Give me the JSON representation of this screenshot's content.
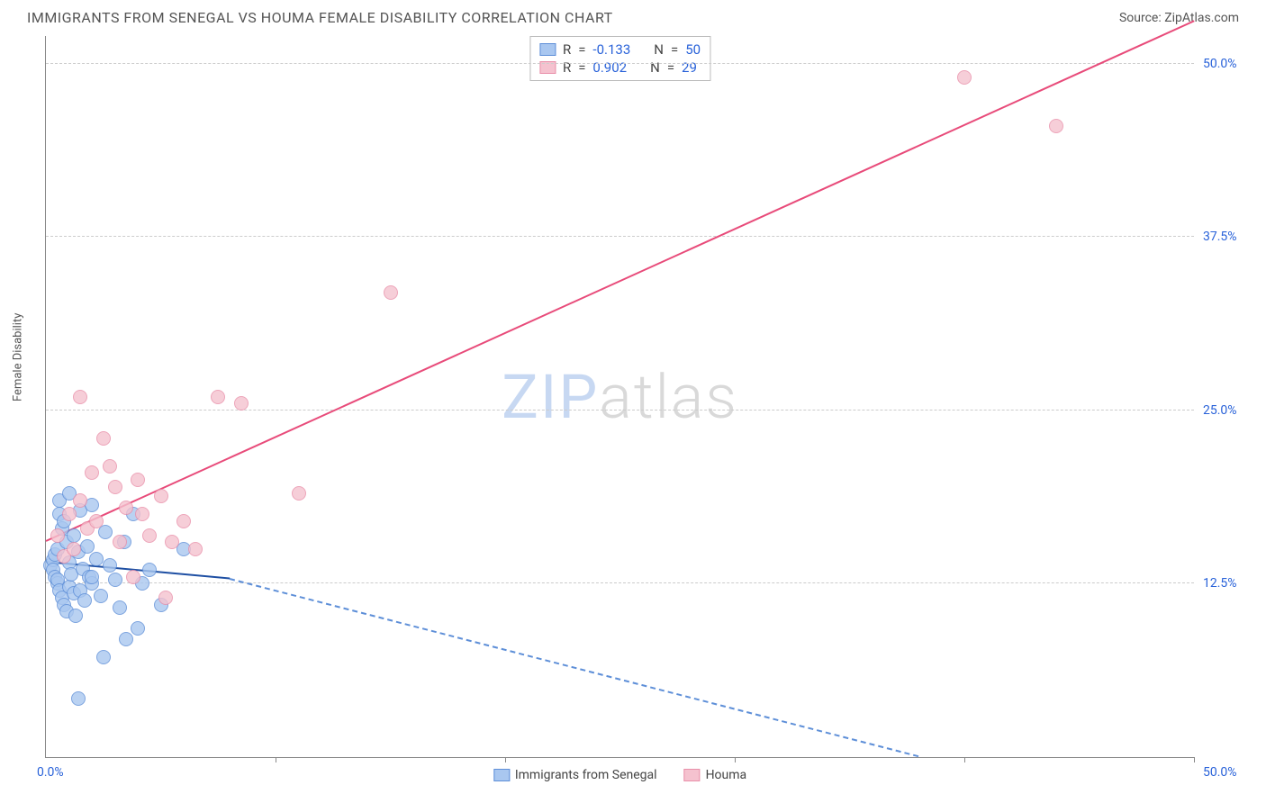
{
  "header": {
    "title": "IMMIGRANTS FROM SENEGAL VS HOUMA FEMALE DISABILITY CORRELATION CHART",
    "source": "Source: ZipAtlas.com"
  },
  "ylabel": "Female Disability",
  "watermark": {
    "zip": "ZIP",
    "atlas": "atlas"
  },
  "axes": {
    "xlim": [
      0,
      50
    ],
    "ylim": [
      0,
      52
    ],
    "x_origin_label": "0.0%",
    "x_max_label": "50.0%",
    "y_ticks": [
      {
        "y": 12.5,
        "label": "12.5%"
      },
      {
        "y": 25.0,
        "label": "25.0%"
      },
      {
        "y": 37.5,
        "label": "37.5%"
      },
      {
        "y": 50.0,
        "label": "50.0%"
      }
    ],
    "x_tick_positions": [
      10,
      20,
      30,
      40,
      50
    ],
    "grid_color": "#cccccc",
    "label_color": "#2962d9"
  },
  "series": [
    {
      "name": "Immigrants from Senegal",
      "key": "senegal",
      "color_fill": "#a9c7f0",
      "color_stroke": "#5e8fd8",
      "marker_radius": 8,
      "R": "-0.133",
      "N": "50",
      "trend": {
        "x1": 0,
        "y1": 14.0,
        "x2_solid": 8,
        "y2_solid": 12.8,
        "x2": 38,
        "y2": 0,
        "solid_color": "#1e4fa3",
        "dash_color": "#5e8fd8"
      },
      "points": [
        [
          0.2,
          13.8
        ],
        [
          0.3,
          14.2
        ],
        [
          0.3,
          13.5
        ],
        [
          0.4,
          14.6
        ],
        [
          0.4,
          13.0
        ],
        [
          0.5,
          15.0
        ],
        [
          0.5,
          12.5
        ],
        [
          0.5,
          12.8
        ],
        [
          0.6,
          18.5
        ],
        [
          0.6,
          17.5
        ],
        [
          0.6,
          12.0
        ],
        [
          0.7,
          16.5
        ],
        [
          0.7,
          11.5
        ],
        [
          0.8,
          17.0
        ],
        [
          0.8,
          11.0
        ],
        [
          0.9,
          15.5
        ],
        [
          0.9,
          10.5
        ],
        [
          1.0,
          19.0
        ],
        [
          1.0,
          14.0
        ],
        [
          1.0,
          12.3
        ],
        [
          1.1,
          13.2
        ],
        [
          1.2,
          16.0
        ],
        [
          1.2,
          11.8
        ],
        [
          1.3,
          10.2
        ],
        [
          1.4,
          14.8
        ],
        [
          1.5,
          17.8
        ],
        [
          1.5,
          12.0
        ],
        [
          1.6,
          13.6
        ],
        [
          1.7,
          11.3
        ],
        [
          1.8,
          15.2
        ],
        [
          1.9,
          13.0
        ],
        [
          2.0,
          18.2
        ],
        [
          2.0,
          12.5
        ],
        [
          2.2,
          14.3
        ],
        [
          2.4,
          11.6
        ],
        [
          2.5,
          7.2
        ],
        [
          2.6,
          16.2
        ],
        [
          2.8,
          13.8
        ],
        [
          3.0,
          12.8
        ],
        [
          3.2,
          10.8
        ],
        [
          3.4,
          15.5
        ],
        [
          3.5,
          8.5
        ],
        [
          3.8,
          17.5
        ],
        [
          4.0,
          9.3
        ],
        [
          4.2,
          12.5
        ],
        [
          4.5,
          13.5
        ],
        [
          5.0,
          11.0
        ],
        [
          6.0,
          15.0
        ],
        [
          1.4,
          4.2
        ],
        [
          2.0,
          13.0
        ]
      ]
    },
    {
      "name": "Houma",
      "key": "houma",
      "color_fill": "#f5c2cf",
      "color_stroke": "#e98fa9",
      "marker_radius": 8,
      "R": "0.902",
      "N": "29",
      "trend": {
        "x1": 0,
        "y1": 15.5,
        "x2": 50,
        "y2": 53,
        "color": "#e84b7a"
      },
      "points": [
        [
          0.5,
          16.0
        ],
        [
          0.8,
          14.5
        ],
        [
          1.0,
          17.5
        ],
        [
          1.2,
          15.0
        ],
        [
          1.5,
          18.5
        ],
        [
          1.5,
          26.0
        ],
        [
          1.8,
          16.5
        ],
        [
          2.0,
          20.5
        ],
        [
          2.2,
          17.0
        ],
        [
          2.5,
          23.0
        ],
        [
          2.8,
          21.0
        ],
        [
          3.0,
          19.5
        ],
        [
          3.2,
          15.5
        ],
        [
          3.5,
          18.0
        ],
        [
          3.8,
          13.0
        ],
        [
          4.0,
          20.0
        ],
        [
          4.2,
          17.5
        ],
        [
          4.5,
          16.0
        ],
        [
          5.0,
          18.8
        ],
        [
          5.2,
          11.5
        ],
        [
          5.5,
          15.5
        ],
        [
          6.0,
          17.0
        ],
        [
          6.5,
          15.0
        ],
        [
          7.5,
          26.0
        ],
        [
          8.5,
          25.5
        ],
        [
          11.0,
          19.0
        ],
        [
          15.0,
          33.5
        ],
        [
          40.0,
          49.0
        ],
        [
          44.0,
          45.5
        ]
      ]
    }
  ],
  "legend": {
    "r_label": "R",
    "n_label": "N",
    "eq": "="
  }
}
